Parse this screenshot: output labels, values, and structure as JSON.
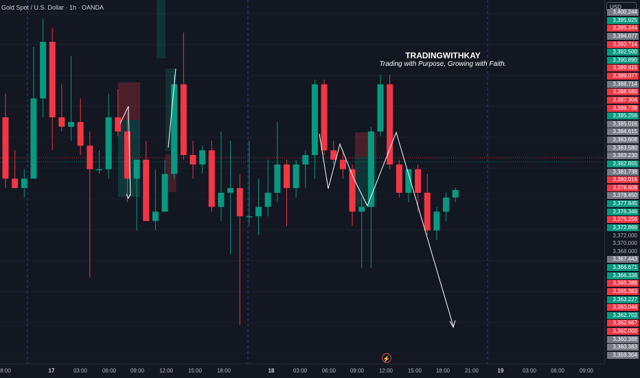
{
  "header": {
    "symbol_title": "Gold Spot / U.S. Dollar · 1h · OANDA"
  },
  "watermark": {
    "title": "TRADINGWITHKAY",
    "subtitle": "Trading with Purpose, Growing with Faith."
  },
  "price_axis": {
    "currency": "USD",
    "labels": [
      {
        "text": "3,400.244",
        "style": "gray"
      },
      {
        "text": "3,395.925",
        "style": "green"
      },
      {
        "text": "3,395.244",
        "style": "red"
      },
      {
        "text": "3,394.077",
        "style": "gray"
      },
      {
        "text": "3,393.714",
        "style": "red"
      },
      {
        "text": "3,392.500",
        "style": "green"
      },
      {
        "text": "3,390.890",
        "style": "green"
      },
      {
        "text": "3,389.615",
        "style": "red"
      },
      {
        "text": "3,389.077",
        "style": "red"
      },
      {
        "text": "3,388.714",
        "style": "gray"
      },
      {
        "text": "3,388.580",
        "style": "red"
      },
      {
        "text": "3,387.304",
        "style": "red"
      },
      {
        "text": "3,386.738",
        "style": "red"
      },
      {
        "text": "3,385.256",
        "style": "green"
      },
      {
        "text": "3,385.016",
        "style": "gray"
      },
      {
        "text": "3,384.615",
        "style": "gray"
      },
      {
        "text": "3,383.608",
        "style": "gray"
      },
      {
        "text": "3,383.580",
        "style": "gray"
      },
      {
        "text": "3,383.230",
        "style": "gray"
      },
      {
        "text": "3,382.855",
        "style": "green"
      },
      {
        "text": "3,381.738",
        "style": "gray"
      },
      {
        "text": "3,380.016",
        "style": "red"
      },
      {
        "text": "3,378.608",
        "style": "red"
      },
      {
        "text": "3,378.450",
        "style": "gray"
      },
      {
        "text": "3,377.845",
        "style": "green"
      },
      {
        "text": "3,376.346",
        "style": "green"
      },
      {
        "text": "3,375.256",
        "style": "red"
      },
      {
        "text": "3,372.866",
        "style": "green"
      },
      {
        "text": "3,372.000",
        "style": "plain"
      },
      {
        "text": "3,370.000",
        "style": "plain"
      },
      {
        "text": "3,368.000",
        "style": "plain"
      },
      {
        "text": "3,367.443",
        "style": "gray"
      },
      {
        "text": "3,366.671",
        "style": "green"
      },
      {
        "text": "3,366.336",
        "style": "green"
      },
      {
        "text": "3,365.388",
        "style": "red"
      },
      {
        "text": "3,365.383",
        "style": "red"
      },
      {
        "text": "3,363.227",
        "style": "green"
      },
      {
        "text": "3,363.044",
        "style": "red"
      },
      {
        "text": "3,362.702",
        "style": "green"
      },
      {
        "text": "3,362.667",
        "style": "red"
      },
      {
        "text": "3,362.000",
        "style": "red"
      },
      {
        "text": "3,360.388",
        "style": "gray"
      },
      {
        "text": "3,360.383",
        "style": "gray"
      },
      {
        "text": "3,359.304",
        "style": "gray"
      }
    ]
  },
  "time_axis": {
    "labels": [
      {
        "text": "8:00",
        "bold": false
      },
      {
        "text": "17",
        "bold": true
      },
      {
        "text": "03:00",
        "bold": false
      },
      {
        "text": "06:00",
        "bold": false
      },
      {
        "text": "09:00",
        "bold": false
      },
      {
        "text": "12:00",
        "bold": false
      },
      {
        "text": "15:00",
        "bold": false
      },
      {
        "text": "18:00",
        "bold": false
      },
      {
        "text": "18",
        "bold": true
      },
      {
        "text": "03:00",
        "bold": false
      },
      {
        "text": "06:00",
        "bold": false
      },
      {
        "text": "09:00",
        "bold": false
      },
      {
        "text": "12:00",
        "bold": false
      },
      {
        "text": "15:00",
        "bold": false
      },
      {
        "text": "18:00",
        "bold": false
      },
      {
        "text": "21:00",
        "bold": false
      },
      {
        "text": "19",
        "bold": true
      },
      {
        "text": "03:00",
        "bold": false
      },
      {
        "text": "06:00",
        "bold": false
      },
      {
        "text": "09:00",
        "bold": false
      }
    ]
  },
  "colors": {
    "background": "#131722",
    "bull": "#089981",
    "bear": "#f23645",
    "label_green": "#089981",
    "label_red": "#f23645",
    "label_gray": "#787b86"
  },
  "candles": [
    {
      "o": 3389.5,
      "h": 3392.0,
      "l": 3382.0,
      "c": 3383.0
    },
    {
      "o": 3383.0,
      "h": 3386.0,
      "l": 3382.0,
      "c": 3382.0
    },
    {
      "o": 3382.0,
      "h": 3384.0,
      "l": 3381.0,
      "c": 3383.0
    },
    {
      "o": 3383.0,
      "h": 3397.0,
      "l": 3383.0,
      "c": 3391.5
    },
    {
      "o": 3391.5,
      "h": 3400.0,
      "l": 3389.5,
      "c": 3397.5
    },
    {
      "o": 3397.5,
      "h": 3399.0,
      "l": 3386.0,
      "c": 3389.5
    },
    {
      "o": 3389.5,
      "h": 3393.0,
      "l": 3388.0,
      "c": 3388.5
    },
    {
      "o": 3388.5,
      "h": 3396.0,
      "l": 3387.0,
      "c": 3389.0
    },
    {
      "o": 3389.0,
      "h": 3391.5,
      "l": 3385.5,
      "c": 3386.5
    },
    {
      "o": 3386.5,
      "h": 3388.0,
      "l": 3372.5,
      "c": 3384.0
    },
    {
      "o": 3384.0,
      "h": 3386.0,
      "l": 3383.5,
      "c": 3384.0
    },
    {
      "o": 3384.0,
      "h": 3392.0,
      "l": 3383.0,
      "c": 3389.5
    },
    {
      "o": 3389.5,
      "h": 3392.5,
      "l": 3387.5,
      "c": 3388.0
    },
    {
      "o": 3388.0,
      "h": 3390.0,
      "l": 3380.5,
      "c": 3383.0
    },
    {
      "o": 3383.0,
      "h": 3385.0,
      "l": 3377.5,
      "c": 3385.0
    },
    {
      "o": 3385.0,
      "h": 3387.0,
      "l": 3378.5,
      "c": 3378.5
    },
    {
      "o": 3378.5,
      "h": 3384.0,
      "l": 3377.5,
      "c": 3379.5
    },
    {
      "o": 3379.5,
      "h": 3385.0,
      "l": 3379.5,
      "c": 3383.5
    },
    {
      "o": 3383.5,
      "h": 3394.0,
      "l": 3383.0,
      "c": 3393.0
    },
    {
      "o": 3393.0,
      "h": 3398.5,
      "l": 3385.0,
      "c": 3385.5
    },
    {
      "o": 3385.5,
      "h": 3387.0,
      "l": 3383.0,
      "c": 3384.5
    },
    {
      "o": 3384.5,
      "h": 3386.5,
      "l": 3383.5,
      "c": 3386.0
    },
    {
      "o": 3386.0,
      "h": 3387.0,
      "l": 3379.5,
      "c": 3380.0
    },
    {
      "o": 3380.0,
      "h": 3388.0,
      "l": 3378.5,
      "c": 3381.5
    },
    {
      "o": 3381.5,
      "h": 3387.0,
      "l": 3375.0,
      "c": 3382.0
    },
    {
      "o": 3382.0,
      "h": 3383.5,
      "l": 3367.5,
      "c": 3379.0
    },
    {
      "o": 3379.0,
      "h": 3387.0,
      "l": 3378.0,
      "c": 3379.0
    },
    {
      "o": 3379.0,
      "h": 3383.0,
      "l": 3377.0,
      "c": 3380.0
    },
    {
      "o": 3380.0,
      "h": 3385.0,
      "l": 3379.0,
      "c": 3381.5
    },
    {
      "o": 3381.5,
      "h": 3389.0,
      "l": 3380.5,
      "c": 3384.5
    },
    {
      "o": 3384.5,
      "h": 3385.0,
      "l": 3378.0,
      "c": 3382.0
    },
    {
      "o": 3382.0,
      "h": 3385.0,
      "l": 3381.0,
      "c": 3384.5
    },
    {
      "o": 3384.5,
      "h": 3386.0,
      "l": 3382.0,
      "c": 3385.5
    },
    {
      "o": 3385.5,
      "h": 3393.5,
      "l": 3383.0,
      "c": 3393.0
    },
    {
      "o": 3393.0,
      "h": 3393.5,
      "l": 3385.5,
      "c": 3386.0
    },
    {
      "o": 3386.0,
      "h": 3387.0,
      "l": 3384.5,
      "c": 3385.0
    },
    {
      "o": 3385.0,
      "h": 3386.0,
      "l": 3383.0,
      "c": 3384.0
    },
    {
      "o": 3384.0,
      "h": 3384.5,
      "l": 3378.0,
      "c": 3379.5
    },
    {
      "o": 3379.5,
      "h": 3381.0,
      "l": 3373.5,
      "c": 3380.0
    },
    {
      "o": 3380.0,
      "h": 3388.5,
      "l": 3373.5,
      "c": 3388.0
    },
    {
      "o": 3388.0,
      "h": 3394.0,
      "l": 3387.5,
      "c": 3393.0
    },
    {
      "o": 3393.0,
      "h": 3394.0,
      "l": 3384.0,
      "c": 3384.5
    },
    {
      "o": 3384.5,
      "h": 3385.0,
      "l": 3381.0,
      "c": 3381.5
    },
    {
      "o": 3381.5,
      "h": 3384.0,
      "l": 3380.5,
      "c": 3384.0
    },
    {
      "o": 3384.0,
      "h": 3384.5,
      "l": 3379.5,
      "c": 3381.5
    },
    {
      "o": 3381.5,
      "h": 3383.5,
      "l": 3377.0,
      "c": 3377.5
    },
    {
      "o": 3377.5,
      "h": 3380.0,
      "l": 3376.5,
      "c": 3379.5
    },
    {
      "o": 3379.5,
      "h": 3381.5,
      "l": 3378.5,
      "c": 3381.0
    },
    {
      "o": 3381.0,
      "h": 3382.0,
      "l": 3380.5,
      "c": 3381.8
    }
  ]
}
